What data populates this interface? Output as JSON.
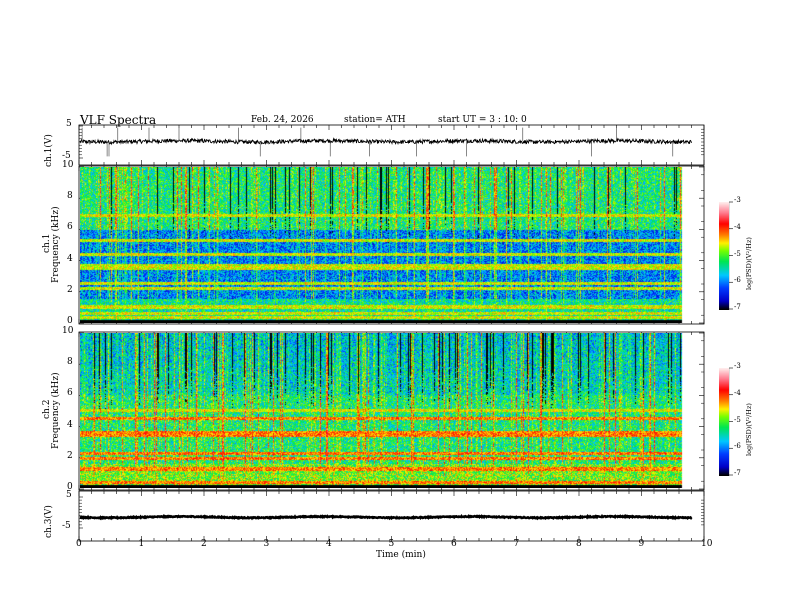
{
  "header": {
    "title": "VLF  Spectra",
    "date": "Feb. 24, 2026",
    "station": "station= ATH",
    "start_ut": "start  UT  =   3  : 10: 0"
  },
  "chart_data": [
    {
      "type": "line",
      "name": "ch1-waveform",
      "ylabel": "ch.1(V)",
      "ylim": [
        -5,
        5
      ],
      "yticks": [
        "5",
        "-5"
      ],
      "baseline": 0.2,
      "noise_amplitude": 0.6,
      "spikes_min": [
        0.05,
        0.45,
        0.48,
        0.62,
        1.12,
        1.6,
        2.55,
        2.9,
        3.55,
        4.02,
        4.65,
        5.4,
        6.2,
        7.1,
        8.2,
        8.6,
        9.5
      ]
    },
    {
      "type": "heatmap",
      "name": "ch1-spectrogram",
      "ylabel": "ch.1\nFrequency  (kHz)",
      "xlim": [
        0,
        10
      ],
      "ylim": [
        0,
        10
      ],
      "yticks": [
        "0",
        "2",
        "4",
        "6",
        "8",
        "10"
      ],
      "colorbar": {
        "label": "log(PSD)(V²/Hz)",
        "range": [
          -7,
          -3
        ],
        "ticks": [
          "-3",
          "-4",
          "-5",
          "-6",
          "-7"
        ]
      },
      "background_level_low_freq": -5.4,
      "background_level_mid_freq": -6.0,
      "background_level_high_freq": -5.3,
      "bands_khz": [
        0.3,
        0.6,
        1.0,
        2.2,
        2.5,
        3.5,
        3.7,
        4.4,
        5.3,
        6.9
      ],
      "data_end_min": 9.8
    },
    {
      "type": "heatmap",
      "name": "ch2-spectrogram",
      "ylabel": "ch.2\nFrequency  (kHz)",
      "xlim": [
        0,
        10
      ],
      "ylim": [
        0,
        10
      ],
      "yticks": [
        "0",
        "2",
        "4",
        "6",
        "8",
        "10"
      ],
      "colorbar": {
        "label": "log(PSD)(V²/Hz)",
        "range": [
          -7,
          -3
        ],
        "ticks": [
          "-3",
          "-4",
          "-5",
          "-6",
          "-7"
        ]
      },
      "background_level_low_freq": -4.9,
      "background_level_mid_freq": -5.3,
      "background_level_high_freq": -5.5,
      "bands_khz": [
        0.3,
        1.2,
        1.9,
        2.2,
        3.4,
        3.6,
        4.5,
        5.0
      ],
      "data_end_min": 9.8
    },
    {
      "type": "line",
      "name": "ch3-waveform",
      "ylabel": "ch.3(V)",
      "ylim": [
        -5,
        5
      ],
      "yticks": [
        "5",
        "-5"
      ],
      "baseline": -1.5,
      "noise_amplitude": 0.15
    }
  ],
  "xaxis": {
    "label": "Time  (min)",
    "ticks": [
      "0",
      "1",
      "2",
      "3",
      "4",
      "5",
      "6",
      "7",
      "8",
      "9",
      "10"
    ],
    "range": [
      0,
      10
    ]
  }
}
